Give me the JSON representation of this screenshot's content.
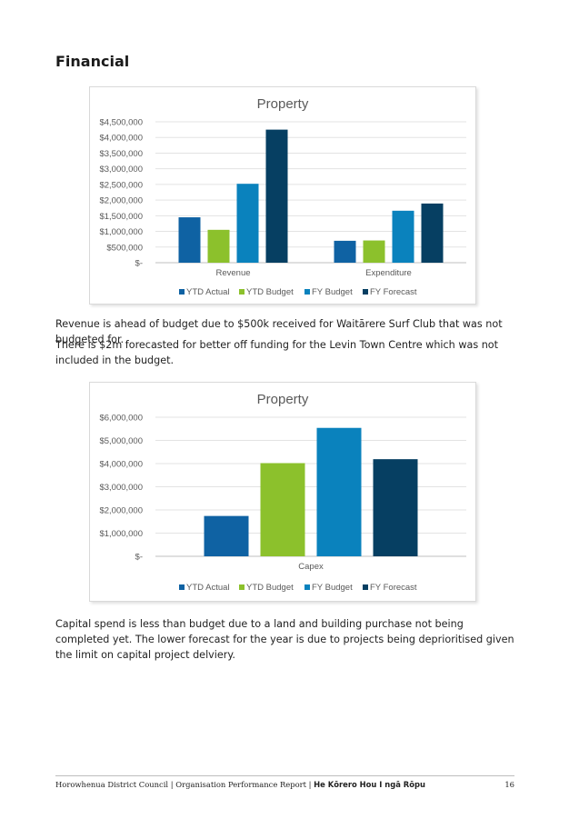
{
  "page": {
    "heading": "Financial",
    "para1": "Revenue is ahead of budget due to $500k received for Waitārere Surf Club that was not budgeted for.",
    "para2": "There is $2m forecasted for better off funding for the Levin Town Centre which was not included in the budget.",
    "para3": "Capital spend is less than budget due to a land and building purchase not being completed yet. The lower forecast for the year is due to projects being deprioritised given the limit on capital project delviery.",
    "footer_left": "Horowhenua District Council | Organisation Performance Report | ",
    "footer_bold": "He Kōrero Hou I ngā Rōpu",
    "page_number": "16"
  },
  "chart_data": [
    {
      "type": "bar",
      "title": "Property",
      "categories": [
        "Revenue",
        "Expenditure"
      ],
      "series": [
        {
          "name": "YTD Actual",
          "color": "#0f62a3",
          "values": [
            1450000,
            700000
          ]
        },
        {
          "name": "YTD Budget",
          "color": "#8cc12c",
          "values": [
            1050000,
            710000
          ]
        },
        {
          "name": "FY Budget",
          "color": "#0a82bd",
          "values": [
            2520000,
            1660000
          ]
        },
        {
          "name": "FY Forecast",
          "color": "#063f62",
          "values": [
            4250000,
            1890000
          ]
        }
      ],
      "yticks": [
        {
          "value": 0,
          "label": "$-"
        },
        {
          "value": 500000,
          "label": "$500,000"
        },
        {
          "value": 1000000,
          "label": "$1,000,000"
        },
        {
          "value": 1500000,
          "label": "$1,500,000"
        },
        {
          "value": 2000000,
          "label": "$2,000,000"
        },
        {
          "value": 2500000,
          "label": "$2,500,000"
        },
        {
          "value": 3000000,
          "label": "$3,000,000"
        },
        {
          "value": 3500000,
          "label": "$3,500,000"
        },
        {
          "value": 4000000,
          "label": "$4,000,000"
        },
        {
          "value": 4500000,
          "label": "$4,500,000"
        }
      ],
      "ylim": [
        0,
        4500000
      ],
      "grid": true,
      "legend": "bottom"
    },
    {
      "type": "bar",
      "title": "Property",
      "categories": [
        "Capex"
      ],
      "series": [
        {
          "name": "YTD Actual",
          "color": "#0f62a3",
          "values": [
            1740000
          ]
        },
        {
          "name": "YTD Budget",
          "color": "#8cc12c",
          "values": [
            4020000
          ]
        },
        {
          "name": "FY Budget",
          "color": "#0a82bd",
          "values": [
            5540000
          ]
        },
        {
          "name": "FY Forecast",
          "color": "#063f62",
          "values": [
            4190000
          ]
        }
      ],
      "yticks": [
        {
          "value": 0,
          "label": "$-"
        },
        {
          "value": 1000000,
          "label": "$1,000,000"
        },
        {
          "value": 2000000,
          "label": "$2,000,000"
        },
        {
          "value": 3000000,
          "label": "$3,000,000"
        },
        {
          "value": 4000000,
          "label": "$4,000,000"
        },
        {
          "value": 5000000,
          "label": "$5,000,000"
        },
        {
          "value": 6000000,
          "label": "$6,000,000"
        }
      ],
      "ylim": [
        0,
        6000000
      ],
      "grid": true,
      "legend": "bottom"
    }
  ]
}
